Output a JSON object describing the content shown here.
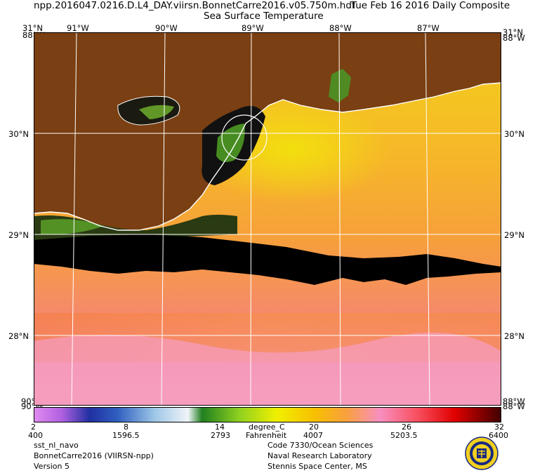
{
  "header": {
    "filename": "npp.2016047.0216.D.L4_DAY.viirsn.BonnetCarre2016.v05.750m.hdf",
    "date": "Tue Feb 16 2016 Daily Composite",
    "product": "Sea Surface Temperature"
  },
  "axes": {
    "lon_labels": [
      "91°W",
      "90°W",
      "89°W",
      "88°W",
      "87°W"
    ],
    "lat_labels": [
      "30°N",
      "29°N",
      "28°N"
    ],
    "corner_top": "31°N",
    "corner_top_edge": "88°W",
    "corner_bottom_edge": "90°W",
    "corner_bottom_right": "88°W"
  },
  "colorbar": {
    "unit_c": "degree_C",
    "unit_f": "Fahrenheit",
    "celsius_ticks": [
      "2",
      "8",
      "14",
      "20",
      "26",
      "32"
    ],
    "fahrenheit_ticks": [
      "400",
      "1596.5",
      "2793",
      "4007",
      "5203.5",
      "6400"
    ],
    "range": [
      2,
      32
    ]
  },
  "footer": {
    "left": [
      "sst_nl_navo",
      "BonnetCarre2016 (VIIRSN-npp)",
      "Version 5"
    ],
    "right": [
      "Code 7330/Ocean Sciences",
      "Naval Research Laboratory",
      "Stennis Space Center, MS"
    ]
  },
  "colors": {
    "land": "#7a3f12",
    "cloud_nodata": "#000000",
    "coastline": "#ffffff",
    "grid": "#ffffff"
  }
}
